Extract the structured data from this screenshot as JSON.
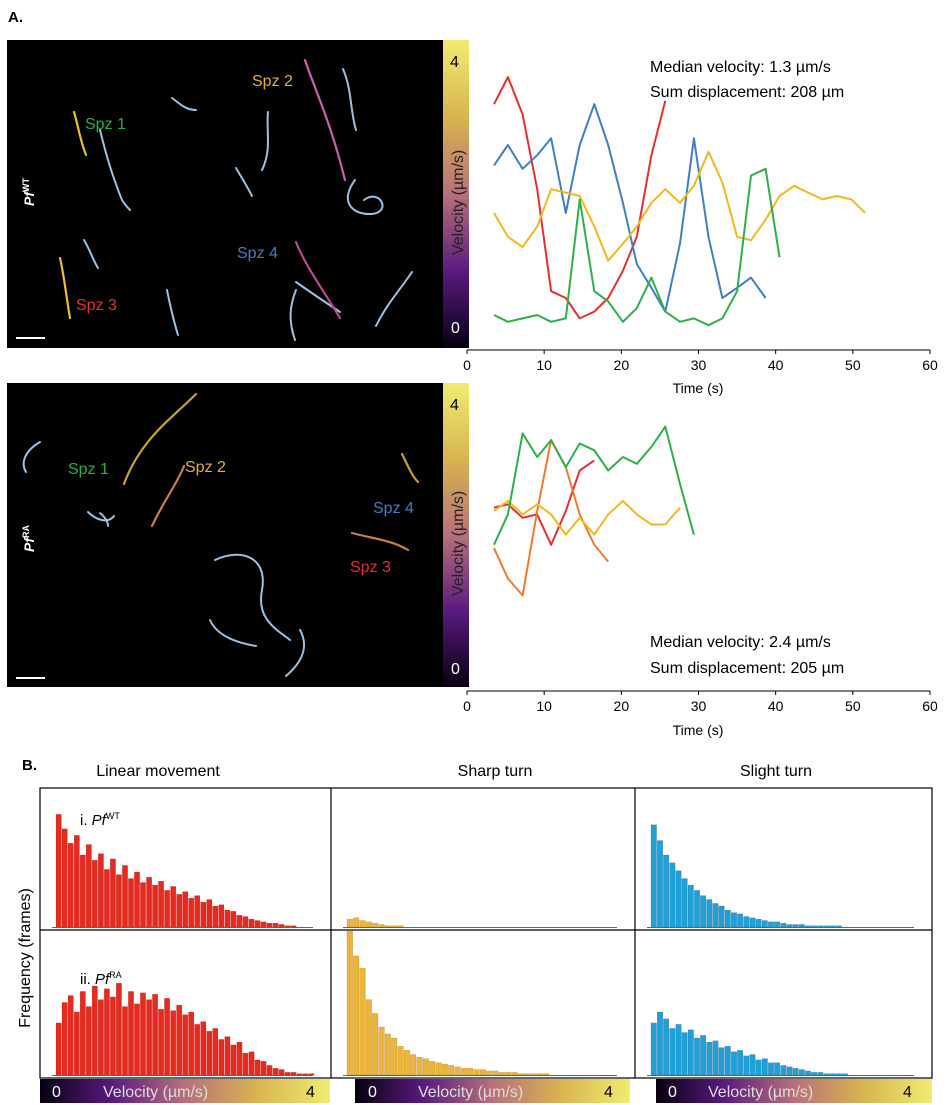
{
  "figure": {
    "panel_a_label": "A.",
    "panel_b_label": "B."
  },
  "chart_data": [
    {
      "type": "line",
      "panel": "A-top",
      "condition_label": "PfWT",
      "condition_prefix": "Pf",
      "condition_sup": "WT",
      "image_labels": [
        {
          "name": "Spz 1",
          "color": "#22b14c"
        },
        {
          "name": "Spz 2",
          "color": "#e6b030"
        },
        {
          "name": "Spz 3",
          "color": "#e53030"
        },
        {
          "name": "Spz 4",
          "color": "#3f7fc4"
        }
      ],
      "colorbar": {
        "label": "Velocity (µm/s)",
        "min_label": "0",
        "max_label": "4"
      },
      "annotation_1": "Median velocity: 1.3 µm/s",
      "annotation_2": "Sum displacement: 208 µm",
      "xlabel": "Time (s)",
      "xlim": [
        0,
        60
      ],
      "xticks": [
        "0",
        "10",
        "20",
        "30",
        "40",
        "50",
        "60"
      ],
      "ylim": [
        0,
        4
      ],
      "series": [
        {
          "color": "#e53030",
          "x": [
            3.5,
            5.3,
            7.2,
            9.1,
            10.9,
            12.8,
            14.6,
            16.5,
            18.3,
            20.2,
            22,
            23.9,
            25.7
          ],
          "y": [
            3.35,
            3.75,
            3.2,
            2.1,
            0.6,
            0.5,
            0.2,
            0.3,
            0.5,
            0.9,
            1.4,
            2.6,
            3.4
          ]
        },
        {
          "color": "#3f7fc4",
          "x": [
            3.5,
            5.3,
            7.2,
            9.1,
            10.9,
            12.8,
            14.6,
            16.5,
            18.3,
            20.2,
            22,
            23.9,
            25.7,
            27.6,
            29.4,
            31.3,
            33.1,
            35,
            36.8,
            38.7
          ],
          "y": [
            2.45,
            2.75,
            2.4,
            2.6,
            2.85,
            1.75,
            2.75,
            3.35,
            2.75,
            1.9,
            1.0,
            0.65,
            0.3,
            1.3,
            2.85,
            1.4,
            0.5,
            0.65,
            0.8,
            0.5
          ]
        },
        {
          "color": "#f5b71e",
          "x": [
            3.5,
            5.3,
            7.2,
            9.1,
            10.9,
            12.8,
            14.6,
            16.5,
            18.3,
            20.2,
            22,
            23.9,
            25.7,
            27.6,
            29.4,
            31.3,
            33.1,
            35,
            36.8,
            38.7,
            40.5,
            42.4,
            44.2,
            46.1,
            47.9,
            49.8,
            51.6
          ],
          "y": [
            1.75,
            1.4,
            1.25,
            1.55,
            2.1,
            2.05,
            2.0,
            1.55,
            1.05,
            1.3,
            1.55,
            1.9,
            2.1,
            1.9,
            2.15,
            2.65,
            2.2,
            1.4,
            1.35,
            1.65,
            2.0,
            2.15,
            2.05,
            1.95,
            2.0,
            1.95,
            1.75
          ]
        },
        {
          "color": "#2db04a",
          "x": [
            3.5,
            5.3,
            7.2,
            9.1,
            10.9,
            12.8,
            14.6,
            16.5,
            18.3,
            20.2,
            22,
            23.9,
            25.7,
            27.6,
            29.4,
            31.3,
            33.1,
            35,
            36.8,
            38.7,
            40.5
          ],
          "y": [
            0.25,
            0.15,
            0.2,
            0.25,
            0.15,
            0.2,
            1.95,
            0.6,
            0.45,
            0.15,
            0.35,
            0.8,
            0.3,
            0.15,
            0.2,
            0.1,
            0.2,
            0.6,
            2.3,
            2.4,
            1.1
          ]
        }
      ]
    },
    {
      "type": "line",
      "panel": "A-bottom",
      "condition_label": "PfRA",
      "condition_prefix": "Pf",
      "condition_sup": "RA",
      "image_labels": [
        {
          "name": "Spz 1",
          "color": "#22b14c"
        },
        {
          "name": "Spz 2",
          "color": "#e6b030"
        },
        {
          "name": "Spz 3",
          "color": "#e53030"
        },
        {
          "name": "Spz 4",
          "color": "#3f7fc4"
        }
      ],
      "colorbar": {
        "label": "Velocity (µm/s)",
        "min_label": "0",
        "max_label": "4"
      },
      "annotation_1": "Median velocity: 2.4 µm/s",
      "annotation_2": "Sum displacement: 205 µm",
      "xlabel": "Time (s)",
      "xlim": [
        0,
        60
      ],
      "xticks": [
        "0",
        "10",
        "20",
        "30",
        "40",
        "50",
        "60"
      ],
      "ylim": [
        0,
        4
      ],
      "series": [
        {
          "color": "#e53030",
          "x": [
            3.5,
            5.3,
            7.2,
            9.1,
            10.9,
            12.8,
            14.6,
            16.5
          ],
          "y": [
            2.45,
            2.5,
            2.3,
            2.35,
            1.9,
            2.4,
            3.0,
            3.15
          ]
        },
        {
          "color": "#f07a2a",
          "x": [
            3.5,
            5.3,
            7.2,
            9.1,
            10.9,
            12.8,
            14.6,
            16.5,
            18.3
          ],
          "y": [
            1.85,
            1.4,
            1.15,
            2.4,
            3.45,
            3.05,
            2.35,
            1.9,
            1.65
          ]
        },
        {
          "color": "#f5b71e",
          "x": [
            3.5,
            5.3,
            7.2,
            9.1,
            10.9,
            12.8,
            14.6,
            16.5,
            18.3,
            20.2,
            22,
            23.9,
            25.7,
            27.6
          ],
          "y": [
            2.4,
            2.55,
            2.35,
            2.5,
            2.35,
            2.05,
            2.3,
            2.05,
            2.35,
            2.55,
            2.35,
            2.2,
            2.2,
            2.45
          ]
        },
        {
          "color": "#2db04a",
          "x": [
            3.5,
            5.3,
            7.2,
            9.1,
            10.9,
            12.8,
            14.6,
            16.5,
            18.3,
            20.2,
            22,
            23.9,
            25.7,
            27.6,
            29.4
          ],
          "y": [
            1.9,
            2.35,
            3.55,
            3.2,
            3.45,
            3.05,
            3.4,
            3.3,
            3.0,
            3.2,
            3.1,
            3.35,
            3.65,
            2.8,
            2.05
          ]
        }
      ]
    },
    {
      "type": "bar",
      "panel": "B",
      "ylabel": "Frequency (frames)",
      "columns": [
        "Linear movement",
        "Sharp turn",
        "Slight turn"
      ],
      "rows": [
        {
          "label_prefix": "i. ",
          "label_italic": "Pf",
          "label_sup": "WT"
        },
        {
          "label_prefix": "ii. ",
          "label_italic": "Pf",
          "label_sup": "RA"
        }
      ],
      "colorbar": {
        "label": "Velocity (µm/s)",
        "min_label": "0",
        "max_label": "4"
      },
      "bar_colors": [
        "#e52a20",
        "#e9b53a",
        "#1ea0d8"
      ],
      "ymax": 100,
      "histograms": [
        [
          [
            86,
            75,
            64,
            70,
            55,
            63,
            51,
            56,
            44,
            52,
            40,
            47,
            37,
            42,
            34,
            38,
            32,
            35,
            28,
            31,
            25,
            27,
            22,
            24,
            19,
            21,
            16,
            17,
            13,
            12,
            9,
            8,
            6,
            5,
            4,
            3,
            3,
            2,
            1,
            1
          ],
          [
            6,
            7,
            5,
            4,
            3,
            2,
            1,
            1,
            1,
            0,
            0,
            0
          ],
          [
            78,
            66,
            55,
            49,
            43,
            37,
            32,
            28,
            24,
            21,
            18,
            16,
            13,
            11,
            10,
            8,
            7,
            6,
            5,
            4,
            4,
            3,
            2,
            2,
            2,
            1,
            1,
            1,
            1,
            1,
            1
          ]
        ],
        [
          [
            38,
            53,
            58,
            46,
            61,
            50,
            65,
            55,
            63,
            57,
            67,
            50,
            61,
            52,
            60,
            55,
            59,
            48,
            56,
            47,
            51,
            44,
            46,
            37,
            39,
            32,
            34,
            26,
            28,
            22,
            24,
            16,
            17,
            11,
            10,
            7,
            5,
            4,
            2,
            2,
            1,
            1,
            1
          ],
          [
            105,
            87,
            78,
            55,
            45,
            35,
            30,
            27,
            21,
            18,
            15,
            13,
            12,
            10,
            9,
            8,
            7,
            6,
            5,
            5,
            4,
            4,
            3,
            3,
            2,
            2,
            2,
            1,
            1,
            1,
            1,
            1
          ],
          [
            38,
            46,
            41,
            34,
            37,
            31,
            33,
            27,
            29,
            24,
            25,
            20,
            21,
            17,
            18,
            14,
            15,
            11,
            12,
            9,
            9,
            7,
            6,
            5,
            4,
            3,
            2,
            2,
            1,
            1,
            1,
            1
          ]
        ]
      ]
    }
  ]
}
